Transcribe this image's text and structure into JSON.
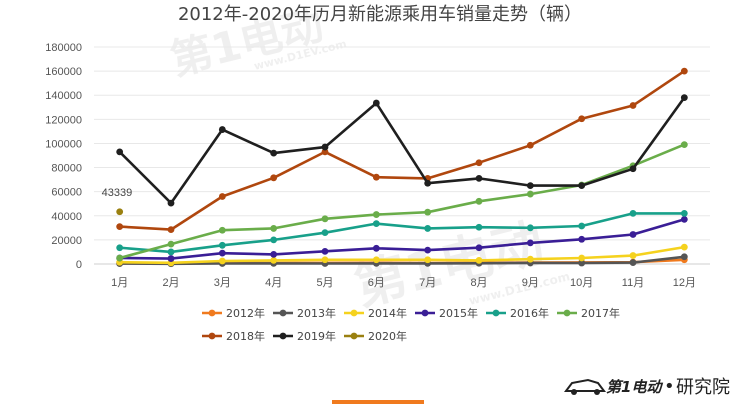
{
  "chart_data": {
    "type": "line",
    "title": "2012年-2020年历月新能源乘用车销量走势（辆）",
    "xlabel": "",
    "ylabel": "",
    "categories": [
      "1月",
      "2月",
      "3月",
      "4月",
      "5月",
      "6月",
      "7月",
      "8月",
      "9月",
      "10月",
      "11月",
      "12月"
    ],
    "ylim": [
      0,
      180000
    ],
    "yticks": [
      0,
      20000,
      40000,
      60000,
      80000,
      100000,
      120000,
      140000,
      160000,
      180000
    ],
    "grid": "horizontal",
    "legend_position": "bottom",
    "series": [
      {
        "name": "2012年",
        "color": "#f07a1e",
        "values": [
          500,
          600,
          900,
          800,
          900,
          1000,
          800,
          900,
          1200,
          1300,
          1500,
          3500
        ]
      },
      {
        "name": "2013年",
        "color": "#555555",
        "values": [
          300,
          200,
          400,
          500,
          400,
          500,
          500,
          600,
          900,
          800,
          1200,
          6000
        ]
      },
      {
        "name": "2014年",
        "color": "#f5d21e",
        "values": [
          1500,
          1000,
          2500,
          3000,
          3500,
          3500,
          3500,
          3000,
          4000,
          5000,
          7000,
          14000
        ]
      },
      {
        "name": "2015年",
        "color": "#3a1e96",
        "values": [
          5000,
          4500,
          9000,
          8000,
          10500,
          13000,
          11500,
          13500,
          17500,
          20500,
          24500,
          37000
        ]
      },
      {
        "name": "2016年",
        "color": "#18a08a",
        "values": [
          13500,
          10000,
          15500,
          20000,
          26000,
          33500,
          29500,
          30500,
          30000,
          31500,
          42000,
          42000
        ]
      },
      {
        "name": "2017年",
        "color": "#6aad4a",
        "values": [
          5000,
          16500,
          28000,
          29500,
          37500,
          41000,
          43000,
          52000,
          58000,
          65500,
          81500,
          99000
        ]
      },
      {
        "name": "2018年",
        "color": "#b0470e",
        "values": [
          31000,
          28500,
          56000,
          71500,
          93000,
          72000,
          71000,
          84000,
          98500,
          120500,
          131500,
          160000
        ]
      },
      {
        "name": "2019年",
        "color": "#1f1f1f",
        "values": [
          93000,
          50500,
          111500,
          92000,
          97000,
          133500,
          67000,
          71000,
          65000,
          65000,
          79000,
          138000
        ]
      },
      {
        "name": "2020年",
        "color": "#9a8010",
        "values": [
          43339,
          null,
          null,
          null,
          null,
          null,
          null,
          null,
          null,
          null,
          null,
          null
        ]
      }
    ],
    "annotations": [
      {
        "label": "43339",
        "series": "2020年",
        "category": "1月",
        "value": 43339
      }
    ]
  },
  "watermark": {
    "text": "第1电动",
    "url": "www.D1EV.com"
  },
  "brand": {
    "logo_text": "第1电动",
    "separator": "•",
    "suffix": "研究院"
  },
  "footer_accent_color": "#f07a1e"
}
